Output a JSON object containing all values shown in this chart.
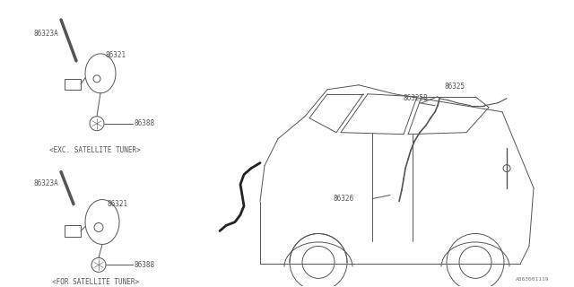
{
  "bg_color": "#ffffff",
  "line_color": "#555555",
  "text_color": "#555555",
  "fig_width": 6.4,
  "fig_height": 3.2,
  "dpi": 100,
  "diagram_id": "A863001119",
  "labels": {
    "86323A_top": "86323A",
    "86321_top": "86321",
    "86388_top": "86388",
    "exc_label": "<EXC. SATELLITE TUNER>",
    "86323A_bot": "86323A",
    "86321_bot": "86321",
    "86388_bot": "86388",
    "for_label": "<FOR SATELLITE TUNER>",
    "86325": "86325",
    "86325B": "86325B",
    "86326": "86326"
  }
}
